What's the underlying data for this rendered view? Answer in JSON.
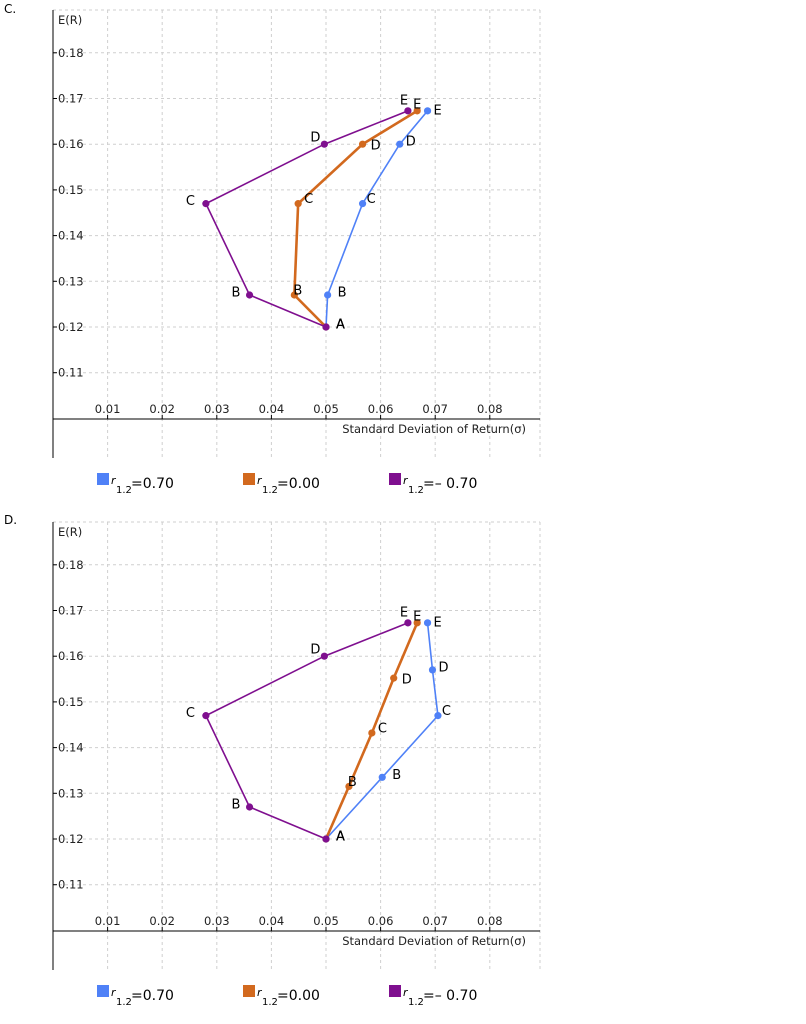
{
  "charts": [
    {
      "option_letter": "C.",
      "ylabel": "E(R)",
      "xlabel": "Standard  Deviation  of  Return(σ)",
      "legend": [
        {
          "series_index": 0,
          "symbol": "r",
          "sub": "1.2",
          "value": "=0.70",
          "color": "#4f81f7"
        },
        {
          "series_index": 1,
          "symbol": "r",
          "sub": "1.2",
          "value": "=0.00",
          "color": "#d2691e"
        },
        {
          "series_index": 2,
          "symbol": "r",
          "sub": "1.2",
          "value": "=– 0.70",
          "color": "#7f0f8f"
        }
      ]
    },
    {
      "option_letter": "D.",
      "ylabel": "E(R)",
      "xlabel": "Standard  Deviation  of  Return(σ)",
      "legend": [
        {
          "series_index": 0,
          "symbol": "r",
          "sub": "1.2",
          "value": "=0.70",
          "color": "#4f81f7"
        },
        {
          "series_index": 1,
          "symbol": "r",
          "sub": "1.2",
          "value": "=0.00",
          "color": "#d2691e"
        },
        {
          "series_index": 2,
          "symbol": "r",
          "sub": "1.2",
          "value": "=– 0.70",
          "color": "#7f0f8f"
        }
      ]
    }
  ],
  "chart_data": [
    {
      "type": "line",
      "xlim": [
        0.0,
        0.087
      ],
      "ylim": [
        0.105,
        0.189
      ],
      "x_ticks": [
        "0.01",
        "0.02",
        "0.03",
        "0.04",
        "0.05",
        "0.06",
        "0.07",
        "0.08"
      ],
      "y_ticks": [
        "0.11",
        "0.12",
        "0.13",
        "0.14",
        "0.15",
        "0.16",
        "0.17",
        "0.18"
      ],
      "grid": true,
      "series": [
        {
          "color": "#4f81f7",
          "points": [
            {
              "label": "A",
              "x": 0.05,
              "y": 0.12
            },
            {
              "label": "B",
              "x": 0.0503,
              "y": 0.127
            },
            {
              "label": "C",
              "x": 0.0567,
              "y": 0.147
            },
            {
              "label": "D",
              "x": 0.0635,
              "y": 0.16
            },
            {
              "label": "E",
              "x": 0.0686,
              "y": 0.1673
            }
          ]
        },
        {
          "color": "#d2691e",
          "points": [
            {
              "label": "A",
              "x": 0.05,
              "y": 0.12
            },
            {
              "label": "B",
              "x": 0.0442,
              "y": 0.127
            },
            {
              "label": "C",
              "x": 0.0449,
              "y": 0.147
            },
            {
              "label": "D",
              "x": 0.0567,
              "y": 0.16
            },
            {
              "label": "E",
              "x": 0.0667,
              "y": 0.1673
            }
          ]
        },
        {
          "color": "#7f0f8f",
          "points": [
            {
              "label": "A",
              "x": 0.05,
              "y": 0.12
            },
            {
              "label": "B",
              "x": 0.036,
              "y": 0.127
            },
            {
              "label": "C",
              "x": 0.028,
              "y": 0.147
            },
            {
              "label": "D",
              "x": 0.0497,
              "y": 0.16
            },
            {
              "label": "E",
              "x": 0.065,
              "y": 0.1673
            }
          ]
        }
      ]
    },
    {
      "type": "line",
      "xlim": [
        0.0,
        0.087
      ],
      "ylim": [
        0.105,
        0.189
      ],
      "x_ticks": [
        "0.01",
        "0.02",
        "0.03",
        "0.04",
        "0.05",
        "0.06",
        "0.07",
        "0.08"
      ],
      "y_ticks": [
        "0.11",
        "0.12",
        "0.13",
        "0.14",
        "0.15",
        "0.16",
        "0.17",
        "0.18"
      ],
      "grid": true,
      "series": [
        {
          "color": "#4f81f7",
          "points": [
            {
              "label": "A",
              "x": 0.05,
              "y": 0.12
            },
            {
              "label": "B",
              "x": 0.0603,
              "y": 0.1335
            },
            {
              "label": "C",
              "x": 0.0705,
              "y": 0.147
            },
            {
              "label": "D",
              "x": 0.0695,
              "y": 0.157
            },
            {
              "label": "E",
              "x": 0.0686,
              "y": 0.1673
            }
          ]
        },
        {
          "color": "#d2691e",
          "points": [
            {
              "label": "A",
              "x": 0.05,
              "y": 0.12
            },
            {
              "label": "B",
              "x": 0.0542,
              "y": 0.1315
            },
            {
              "label": "C",
              "x": 0.0584,
              "y": 0.1432
            },
            {
              "label": "D",
              "x": 0.0624,
              "y": 0.1552
            },
            {
              "label": "E",
              "x": 0.0667,
              "y": 0.1673
            }
          ]
        },
        {
          "color": "#7f0f8f",
          "points": [
            {
              "label": "A",
              "x": 0.05,
              "y": 0.12
            },
            {
              "label": "B",
              "x": 0.036,
              "y": 0.127
            },
            {
              "label": "C",
              "x": 0.028,
              "y": 0.147
            },
            {
              "label": "D",
              "x": 0.0497,
              "y": 0.16
            },
            {
              "label": "E",
              "x": 0.065,
              "y": 0.1673
            }
          ]
        }
      ]
    }
  ]
}
